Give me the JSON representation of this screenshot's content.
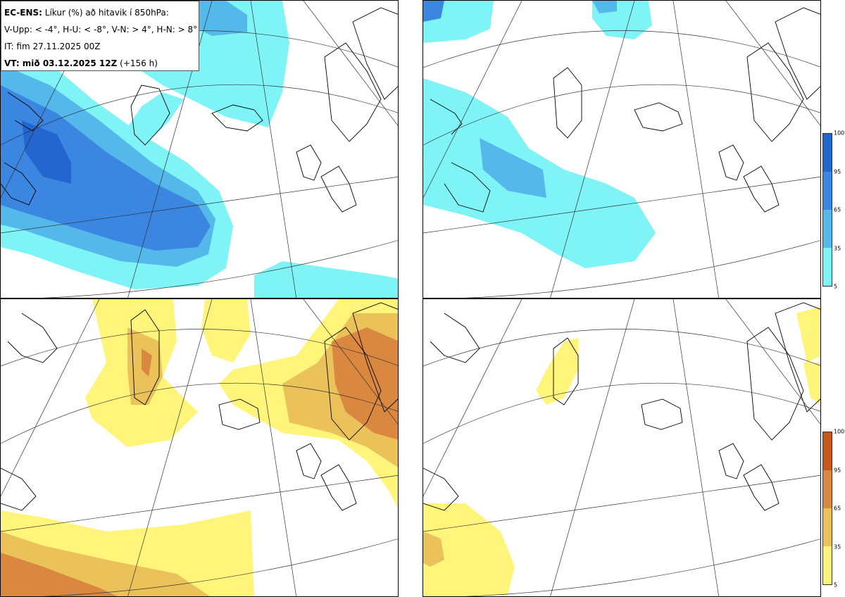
{
  "info": {
    "model": "EC-ENS:",
    "title": "Líkur (%) að hitavik í 850hPa:",
    "thresholds": "V-Upp: < -4°, H-U: < -8°, V-N: > 4°, H-N: > 8°",
    "init_time": "IT: fim 27.11.2025 00Z",
    "valid_label": "VT: mið 03.12.2025 12Z",
    "valid_offset": "(+156 h)"
  },
  "colorbars": {
    "cold": {
      "ticks": [
        "100",
        "95",
        "65",
        "35",
        "5"
      ],
      "colors": [
        "#2466d0",
        "#3a86e0",
        "#55b8ea",
        "#7ff4f6"
      ]
    },
    "warm": {
      "ticks": [
        "100",
        "95",
        "65",
        "35",
        "5"
      ],
      "colors": [
        "#c8571a",
        "#da8840",
        "#ebc25a",
        "#fff57a"
      ]
    }
  },
  "panels": [
    {
      "id": "top-left",
      "variable": "V-Upp",
      "scale": "cold"
    },
    {
      "id": "top-right",
      "variable": "H-U",
      "scale": "cold"
    },
    {
      "id": "bottom-left",
      "variable": "V-N",
      "scale": "warm"
    },
    {
      "id": "bottom-right",
      "variable": "H-N",
      "scale": "warm"
    }
  ]
}
